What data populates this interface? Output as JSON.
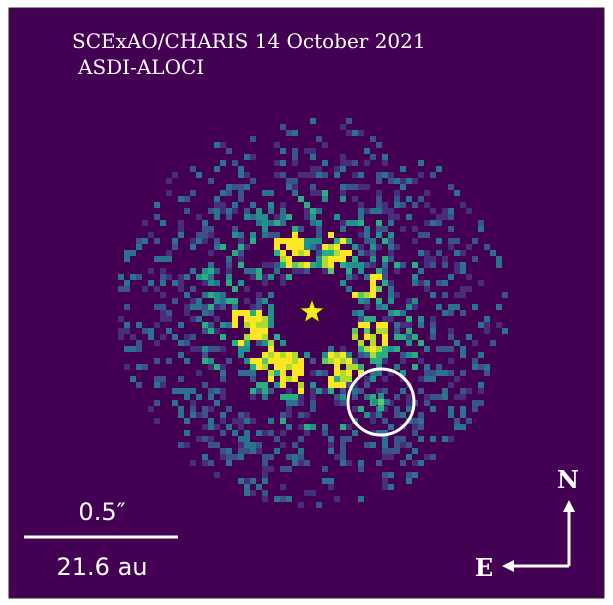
{
  "header": {
    "title": "SCExAO/CHARIS 14 October 2021",
    "subtitle": "ASDI-ALOCI"
  },
  "scale_bar": {
    "angle": "0.5″",
    "distance": "21.6 au"
  },
  "compass": {
    "north": "N",
    "east": "E"
  }
}
